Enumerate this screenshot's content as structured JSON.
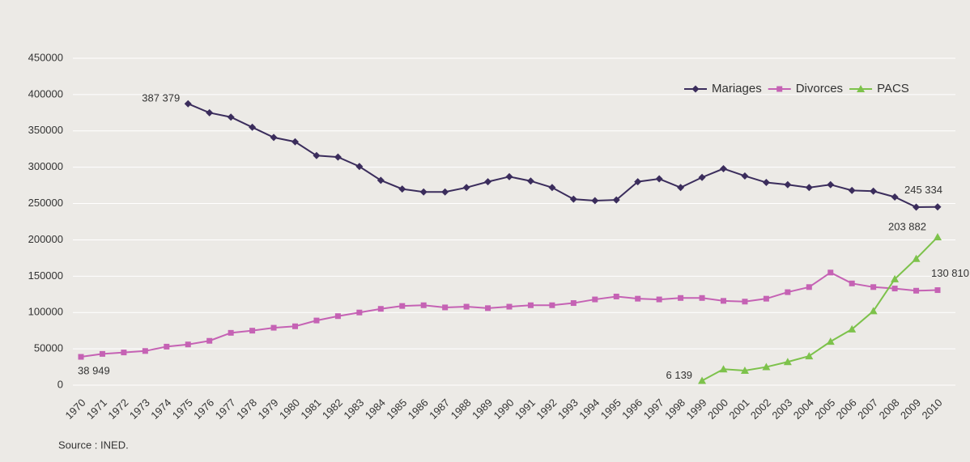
{
  "chart_data": {
    "type": "line",
    "source": "Source : INED.",
    "categories": [
      "1970",
      "1971",
      "1972",
      "1973",
      "1974",
      "1975",
      "1976",
      "1977",
      "1978",
      "1979",
      "1980",
      "1981",
      "1982",
      "1983",
      "1984",
      "1985",
      "1986",
      "1987",
      "1988",
      "1989",
      "1990",
      "1991",
      "1992",
      "1993",
      "1994",
      "1995",
      "1996",
      "1997",
      "1998",
      "1999",
      "2000",
      "2001",
      "2002",
      "2003",
      "2004",
      "2005",
      "2006",
      "2007",
      "2008",
      "2009",
      "2010"
    ],
    "ylim": [
      0,
      450000
    ],
    "yticks": [
      0,
      50000,
      100000,
      150000,
      200000,
      250000,
      300000,
      350000,
      400000,
      450000
    ],
    "grid": true,
    "legend": "top-right",
    "series": [
      {
        "name": "Mariages",
        "color": "#3b2d5c",
        "marker": "diamond",
        "values": [
          null,
          null,
          null,
          null,
          null,
          387379,
          375000,
          369000,
          355000,
          341000,
          335000,
          316000,
          314000,
          301000,
          282000,
          270000,
          266000,
          266000,
          272000,
          280000,
          287000,
          281000,
          272000,
          256000,
          254000,
          255000,
          280000,
          284000,
          272000,
          286000,
          298000,
          288000,
          279000,
          276000,
          272000,
          276000,
          268000,
          267000,
          259000,
          245000,
          245334
        ],
        "value_labels": [
          null,
          null,
          null,
          null,
          null,
          "387 379",
          null,
          null,
          null,
          null,
          null,
          null,
          null,
          null,
          null,
          null,
          null,
          null,
          null,
          null,
          null,
          null,
          null,
          null,
          null,
          null,
          null,
          null,
          null,
          null,
          null,
          null,
          null,
          null,
          null,
          null,
          null,
          null,
          null,
          null,
          "245 334"
        ]
      },
      {
        "name": "Divorces",
        "color": "#c562b4",
        "marker": "square",
        "values": [
          38949,
          43000,
          45000,
          47000,
          53000,
          56000,
          61000,
          72000,
          75000,
          79000,
          81000,
          89000,
          95000,
          100000,
          105000,
          109000,
          110000,
          107000,
          108000,
          106000,
          108000,
          110000,
          110000,
          113000,
          118000,
          122000,
          119000,
          118000,
          120000,
          120000,
          116000,
          115000,
          119000,
          128000,
          135000,
          155000,
          140000,
          135000,
          133000,
          130000,
          130810
        ],
        "value_labels": [
          "38 949",
          null,
          null,
          null,
          null,
          null,
          null,
          null,
          null,
          null,
          null,
          null,
          null,
          null,
          null,
          null,
          null,
          null,
          null,
          null,
          null,
          null,
          null,
          null,
          null,
          null,
          null,
          null,
          null,
          null,
          null,
          null,
          null,
          null,
          null,
          null,
          null,
          null,
          null,
          null,
          "130 810"
        ]
      },
      {
        "name": "PACS",
        "color": "#7dc24b",
        "marker": "triangle",
        "values": [
          null,
          null,
          null,
          null,
          null,
          null,
          null,
          null,
          null,
          null,
          null,
          null,
          null,
          null,
          null,
          null,
          null,
          null,
          null,
          null,
          null,
          null,
          null,
          null,
          null,
          null,
          null,
          null,
          null,
          6139,
          22000,
          20000,
          25000,
          32000,
          40000,
          60000,
          77000,
          102000,
          146000,
          174000,
          203882
        ],
        "value_labels": [
          null,
          null,
          null,
          null,
          null,
          null,
          null,
          null,
          null,
          null,
          null,
          null,
          null,
          null,
          null,
          null,
          null,
          null,
          null,
          null,
          null,
          null,
          null,
          null,
          null,
          null,
          null,
          null,
          null,
          "6 139",
          null,
          null,
          null,
          null,
          null,
          null,
          null,
          null,
          null,
          null,
          "203 882"
        ]
      }
    ]
  }
}
